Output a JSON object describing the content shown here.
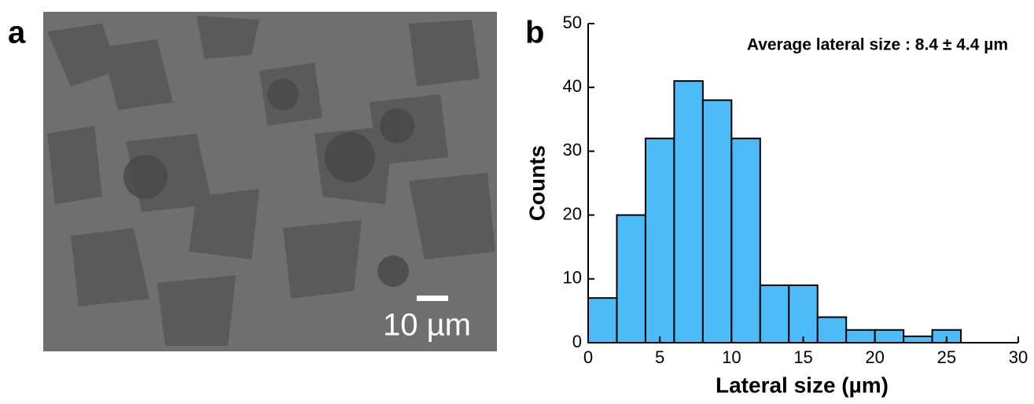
{
  "panel_a": {
    "label": "a",
    "scale_bar": "10 µm"
  },
  "chart_data": {
    "type": "histogram",
    "panel_label": "b",
    "annotation": "Average lateral size : 8.4 ± 4.4 µm",
    "xlabel": "Lateral size (µm)",
    "ylabel": "Counts",
    "bins": [
      0,
      2,
      4,
      6,
      8,
      10,
      12,
      14,
      16,
      18,
      20,
      22,
      24,
      26
    ],
    "counts": [
      7,
      20,
      32,
      41,
      38,
      32,
      9,
      9,
      4,
      2,
      2,
      1,
      2
    ],
    "color": "#4dbbf8",
    "xlim": [
      0,
      30
    ],
    "xticks": [
      0,
      5,
      10,
      15,
      20,
      25,
      30
    ],
    "ylim": [
      0,
      50
    ],
    "yticks": [
      0,
      10,
      20,
      30,
      40,
      50
    ]
  }
}
